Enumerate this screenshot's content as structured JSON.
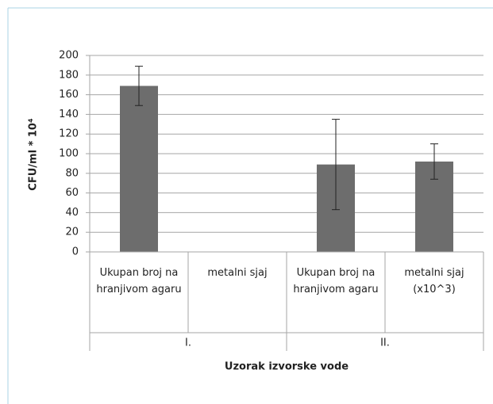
{
  "chart_data": {
    "type": "bar",
    "y_label": "CFU/ml * 10⁴",
    "x_label": "Uzorak izvorske vode",
    "categories": [
      "Ukupan broj na hranjivom agaru",
      "metalni sjaj",
      "Ukupan broj na hranjivom agaru",
      "metalni sjaj (x10^3)"
    ],
    "groups": [
      "I.",
      "II."
    ],
    "values": [
      169,
      null,
      89,
      92
    ],
    "errors": [
      20,
      null,
      46,
      18
    ],
    "color": "#6d6d6d",
    "ylim": [
      0,
      200
    ],
    "yticks": [
      0,
      20,
      40,
      60,
      80,
      100,
      120,
      140,
      160,
      180,
      200
    ],
    "grid": true
  }
}
